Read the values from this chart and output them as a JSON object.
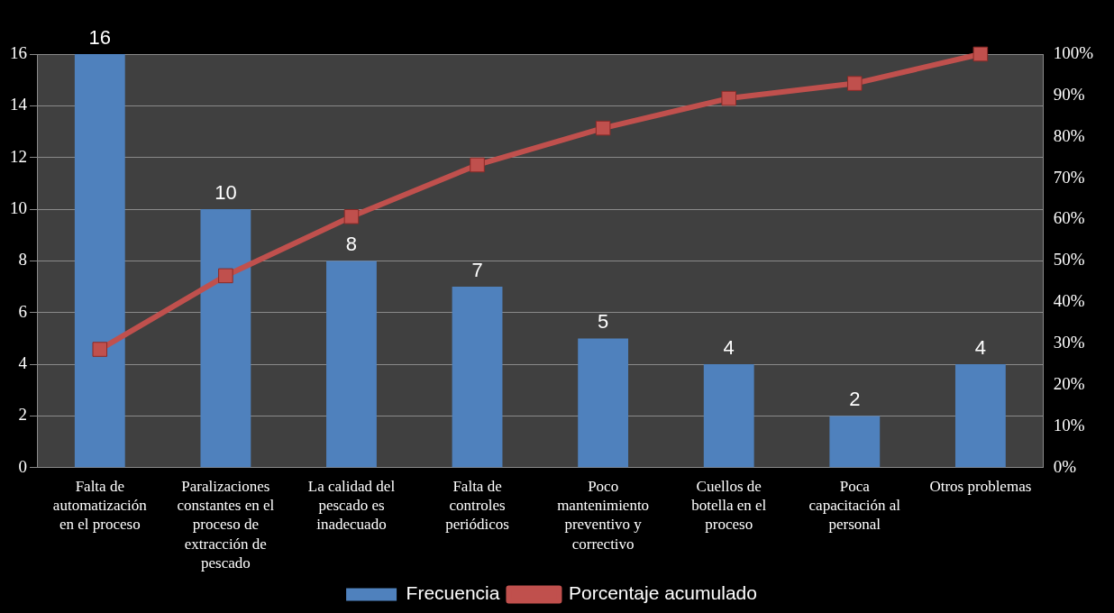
{
  "chart_data": {
    "type": "bar",
    "categories": [
      "Falta de automatización en el proceso",
      "Paralizaciones constantes en el proceso de extracción de pescado",
      "La calidad del pescado es inadecuado",
      "Falta de controles periódicos",
      "Poco mantenimiento preventivo y correctivo",
      "Cuellos de botella en el proceso",
      "Poca capacitación al personal",
      "Otros problemas"
    ],
    "series": [
      {
        "name": "Frecuencia",
        "color": "#4f81bd",
        "values": [
          16,
          10,
          8,
          7,
          5,
          4,
          2,
          4
        ],
        "value_labels": [
          "16",
          "10",
          "8",
          "7",
          "5",
          "4",
          "2",
          "4"
        ]
      },
      {
        "name": "Porcentaje acumulado",
        "type": "line",
        "axis": "y2",
        "color": "#c0504d",
        "marker": "square",
        "values": [
          28.6,
          46.4,
          60.7,
          73.2,
          82.1,
          89.3,
          92.9,
          100
        ]
      }
    ],
    "ylim": [
      0,
      16
    ],
    "yticks": [
      0,
      2,
      4,
      6,
      8,
      10,
      12,
      14,
      16
    ],
    "y2lim": [
      0,
      100
    ],
    "y2ticks": [
      {
        "value": 0,
        "label": "0%"
      },
      {
        "value": 10,
        "label": "10%"
      },
      {
        "value": 20,
        "label": "20%"
      },
      {
        "value": 30,
        "label": "30%"
      },
      {
        "value": 40,
        "label": "40%"
      },
      {
        "value": 50,
        "label": "50%"
      },
      {
        "value": 60,
        "label": "60%"
      },
      {
        "value": 70,
        "label": "70%"
      },
      {
        "value": 80,
        "label": "80%"
      },
      {
        "value": 90,
        "label": "90%"
      },
      {
        "value": 100,
        "label": "100%"
      }
    ],
    "grid": "y",
    "legend": "bottom"
  }
}
